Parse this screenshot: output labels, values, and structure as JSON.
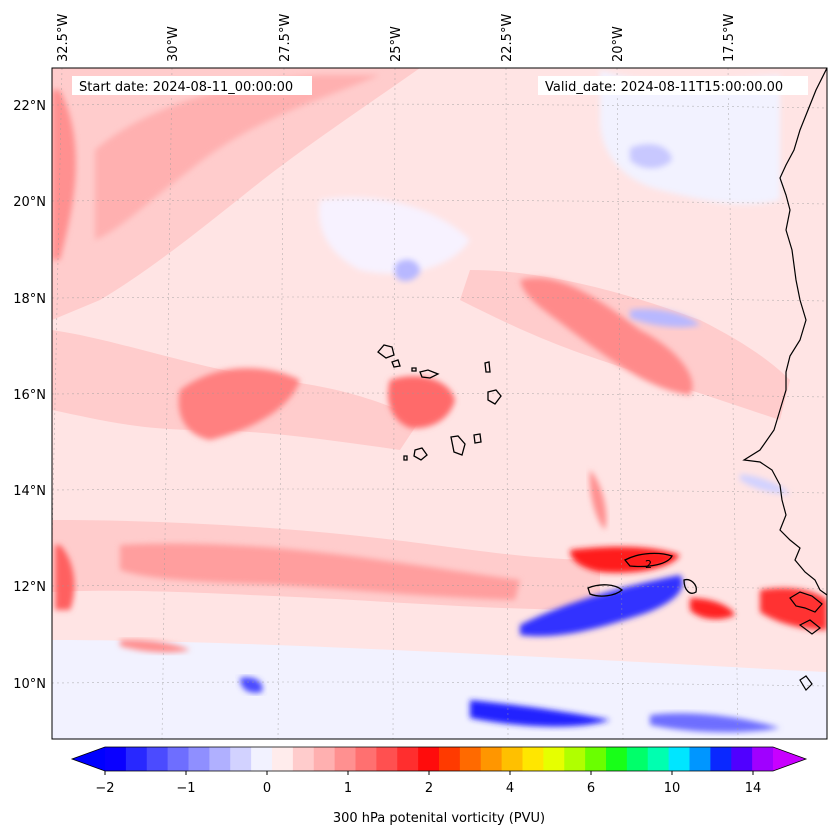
{
  "map": {
    "start_label": "Start date: 2024-08-11_00:00:00",
    "valid_label": "Valid_date: 2024-08-11T15:00:00.00",
    "lon_labels": [
      "32.5°W",
      "30°W",
      "27.5°W",
      "25°W",
      "22.5°W",
      "20°W",
      "17.5°W"
    ],
    "lat_labels": [
      "22°N",
      "20°N",
      "18°N",
      "16°N",
      "14°N",
      "12°N",
      "10°N"
    ],
    "lon_range": [
      -33,
      -15.6
    ],
    "lat_range": [
      8.9,
      22.8
    ],
    "contour_label": "2",
    "gridlines": true
  },
  "colorbar": {
    "label": "300 hPa potenital vorticity (PVU)",
    "tick_labels": [
      "−2",
      "−1",
      "0",
      "1",
      "2",
      "4",
      "6",
      "10",
      "14"
    ],
    "colors": [
      "#0a00ff",
      "#2828ff",
      "#4b4bff",
      "#6e6eff",
      "#8f8fff",
      "#b0b0ff",
      "#d2d2ff",
      "#f2f2ff",
      "#ffecec",
      "#ffcccc",
      "#ffb0b0",
      "#ff9090",
      "#ff7070",
      "#ff5050",
      "#ff2e2e",
      "#ff0c0c",
      "#ff3a00",
      "#ff6a00",
      "#ff9600",
      "#ffc000",
      "#ffe600",
      "#e6ff00",
      "#b0ff00",
      "#6aff00",
      "#18ff18",
      "#00ff6a",
      "#00ffb0",
      "#00e6ff",
      "#0096ff",
      "#0a28ff",
      "#5000ff",
      "#a000ff"
    ],
    "extend_low_color": "#0000ff",
    "extend_high_color": "#c800ff"
  }
}
